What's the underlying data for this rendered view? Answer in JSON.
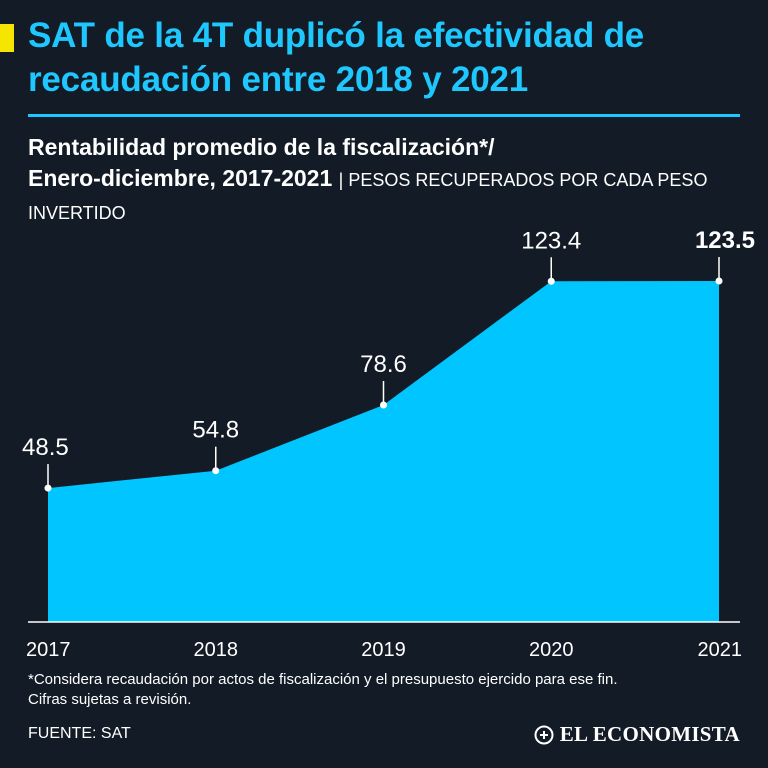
{
  "title": "SAT de la 4T duplicó la efectividad de recaudación entre 2018 y 2021",
  "subtitle": {
    "line1": "Rentabilidad promedio de la fiscalización*/",
    "line2": "Enero-diciembre, 2017-2021",
    "units": "| PESOS RECUPERADOS POR CADA PESO INVERTIDO"
  },
  "chart_data": {
    "type": "area",
    "title": "Rentabilidad promedio de la fiscalización*/",
    "subtitle": "Enero-diciembre, 2017-2021",
    "ylabel": "PESOS RECUPERADOS POR CADA PESO INVERTIDO",
    "xlabel": "",
    "categories": [
      "2017",
      "2018",
      "2019",
      "2020",
      "2021"
    ],
    "values": [
      48.5,
      54.8,
      78.6,
      123.4,
      123.5
    ],
    "labels": [
      "48.5",
      "54.8",
      "78.6",
      "123.4",
      "123.5"
    ],
    "highlight_index": 4,
    "ylim": [
      0,
      123.5
    ],
    "grid": false,
    "colors": {
      "fill": "#00c5ff",
      "text": "#ffffff"
    }
  },
  "footnote": {
    "line1": "*Considera recaudación por actos de fiscalización y el presupuesto ejercido para ese fin.",
    "line2": "Cifras sujetas a revisión."
  },
  "source": "FUENTE: SAT",
  "logo": "EL ECONOMISTA",
  "colors": {
    "background": "#131c26",
    "accent": "#1ec8ff",
    "highlight": "#f6e500"
  }
}
